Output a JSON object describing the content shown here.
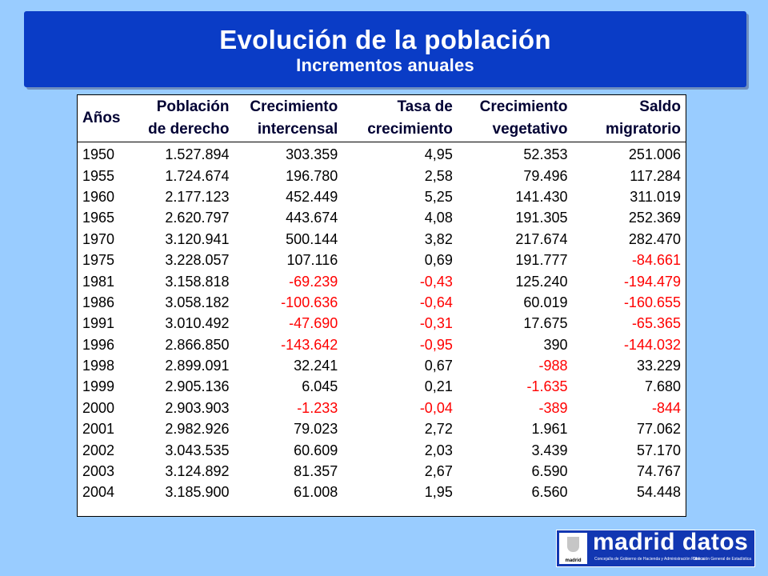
{
  "banner": {
    "title": "Evolución de la población",
    "subtitle": "Incrementos anuales"
  },
  "table": {
    "headers": [
      {
        "line1": "Años",
        "line2": ""
      },
      {
        "line1": "Población",
        "line2": "de derecho"
      },
      {
        "line1": "Crecimiento",
        "line2": "intercensal"
      },
      {
        "line1": "Tasa de",
        "line2": "crecimiento"
      },
      {
        "line1": "Crecimiento",
        "line2": "vegetativo"
      },
      {
        "line1": "Saldo",
        "line2": "migratorio"
      }
    ],
    "rows": [
      [
        "1950",
        "1.527.894",
        "303.359",
        "4,95",
        "52.353",
        "251.006"
      ],
      [
        "1955",
        "1.724.674",
        "196.780",
        "2,58",
        "79.496",
        "117.284"
      ],
      [
        "1960",
        "2.177.123",
        "452.449",
        "5,25",
        "141.430",
        "311.019"
      ],
      [
        "1965",
        "2.620.797",
        "443.674",
        "4,08",
        "191.305",
        "252.369"
      ],
      [
        "1970",
        "3.120.941",
        "500.144",
        "3,82",
        "217.674",
        "282.470"
      ],
      [
        "1975",
        "3.228.057",
        "107.116",
        "0,69",
        "191.777",
        "-84.661"
      ],
      [
        "1981",
        "3.158.818",
        "-69.239",
        "-0,43",
        "125.240",
        "-194.479"
      ],
      [
        "1986",
        "3.058.182",
        "-100.636",
        "-0,64",
        "60.019",
        "-160.655"
      ],
      [
        "1991",
        "3.010.492",
        "-47.690",
        "-0,31",
        "17.675",
        "-65.365"
      ],
      [
        "1996",
        "2.866.850",
        "-143.642",
        "-0,95",
        "390",
        "-144.032"
      ],
      [
        "1998",
        "2.899.091",
        "32.241",
        "0,67",
        "-988",
        "33.229"
      ],
      [
        "1999",
        "2.905.136",
        "6.045",
        "0,21",
        "-1.635",
        "7.680"
      ],
      [
        "2000",
        "2.903.903",
        "-1.233",
        "-0,04",
        "-389",
        "-844"
      ],
      [
        "2001",
        "2.982.926",
        "79.023",
        "2,72",
        "1.961",
        "77.062"
      ],
      [
        "2002",
        "3.043.535",
        "60.609",
        "2,03",
        "3.439",
        "57.170"
      ],
      [
        "2003",
        "3.124.892",
        "81.357",
        "2,67",
        "6.590",
        "74.767"
      ],
      [
        "2004",
        "3.185.900",
        "61.008",
        "1,95",
        "6.560",
        "54.448"
      ]
    ],
    "negative_color": "#ff0000"
  },
  "logo": {
    "brand": "madrid datos",
    "crest_caption": "madrid",
    "tagline_left": "Concejalía de Gobierno de Hacienda y Administración Pública",
    "tagline_right": "Dirección General de Estadística"
  },
  "colors": {
    "background": "#99ccff",
    "banner": "#0a3cc6",
    "header_text": "#000033"
  }
}
